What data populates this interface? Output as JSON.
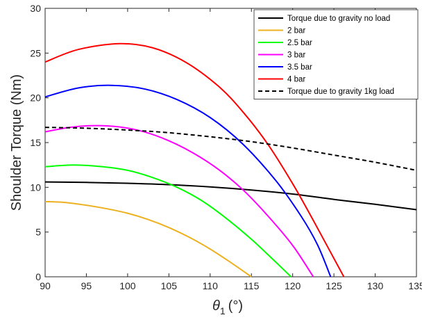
{
  "chart_data": {
    "type": "line",
    "xlabel": "θ1 (°)",
    "xlabel_main": "θ",
    "xlabel_sub": "1",
    "xlabel_unit": "(°)",
    "ylabel": "Shoulder Torque (Nm)",
    "xlim": [
      90,
      135
    ],
    "ylim": [
      0,
      30
    ],
    "xticks": [
      90,
      95,
      100,
      105,
      110,
      115,
      120,
      125,
      130,
      135
    ],
    "yticks": [
      0,
      5,
      10,
      15,
      20,
      25,
      30
    ],
    "grid": false,
    "legend_position": "top-right",
    "series": [
      {
        "name": "Torque due to gravity no load",
        "color": "#000000",
        "dash": "solid",
        "x": [
          90,
          95,
          100,
          105,
          110,
          115,
          120,
          125,
          130,
          135
        ],
        "y": [
          10.6,
          10.55,
          10.45,
          10.3,
          10.05,
          9.7,
          9.25,
          8.65,
          8.1,
          7.5
        ]
      },
      {
        "name": "2 bar",
        "color": "#EDB120",
        "dash": "solid",
        "x": [
          90,
          92.5,
          95,
          97.5,
          100,
          102.5,
          105,
          107.5,
          110,
          112.5,
          115
        ],
        "y": [
          8.4,
          8.3,
          8.0,
          7.6,
          7.1,
          6.4,
          5.5,
          4.4,
          3.1,
          1.6,
          0
        ]
      },
      {
        "name": "2.5 bar",
        "color": "#00FF00",
        "dash": "solid",
        "x": [
          90,
          93.5,
          97,
          100,
          103,
          106,
          109,
          112,
          115,
          118,
          119.8
        ],
        "y": [
          12.3,
          12.5,
          12.3,
          11.9,
          11.1,
          10.0,
          8.5,
          6.5,
          4.2,
          1.6,
          0
        ]
      },
      {
        "name": "3 bar",
        "color": "#FF00FF",
        "dash": "solid",
        "x": [
          90,
          93,
          96,
          99,
          102,
          105,
          108,
          111,
          114,
          117,
          120,
          122.5
        ],
        "y": [
          16.2,
          16.7,
          16.9,
          16.75,
          16.2,
          15.2,
          13.8,
          12.0,
          9.7,
          6.8,
          3.5,
          0
        ]
      },
      {
        "name": "3.5 bar",
        "color": "#0000FF",
        "dash": "solid",
        "x": [
          90,
          94,
          98,
          102,
          106,
          110,
          114,
          118,
          121,
          123,
          124.6
        ],
        "y": [
          20.1,
          21.1,
          21.4,
          21.0,
          19.8,
          17.8,
          14.8,
          10.7,
          6.8,
          3.6,
          0
        ]
      },
      {
        "name": "4 bar",
        "color": "#FF0000",
        "dash": "solid",
        "x": [
          90,
          94,
          99,
          103,
          107,
          111,
          114,
          117,
          120,
          122.5,
          124.5,
          126.2
        ],
        "y": [
          24.0,
          25.4,
          26.05,
          25.6,
          24.0,
          21.3,
          18.4,
          14.8,
          10.4,
          6.3,
          2.9,
          0
        ]
      },
      {
        "name": "Torque due to gravity 1kg load",
        "color": "#000000",
        "dash": "dashed",
        "x": [
          90,
          95,
          100,
          105,
          110,
          115,
          120,
          125,
          130,
          135
        ],
        "y": [
          16.7,
          16.6,
          16.4,
          16.1,
          15.65,
          15.1,
          14.4,
          13.6,
          12.8,
          11.9
        ]
      }
    ]
  }
}
